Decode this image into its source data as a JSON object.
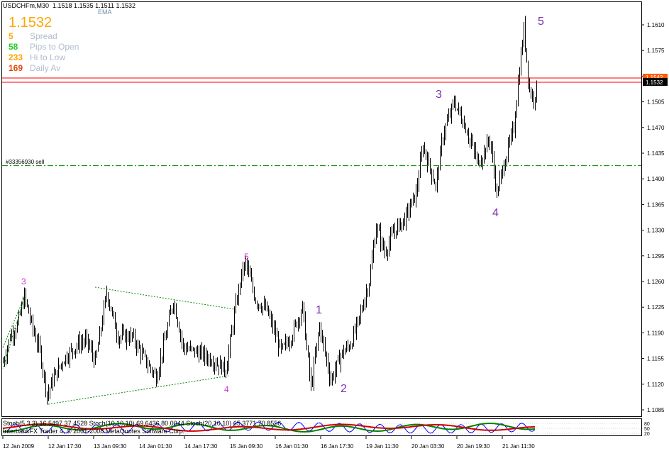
{
  "header": {
    "title": "USDCHFm,M30",
    "ohlc": "1.1518 1.1535 1.1511 1.1532",
    "ema_label": "EMA"
  },
  "info_panel": {
    "price": "1.1532",
    "rows": [
      {
        "value": "5",
        "label": "Spread",
        "color": "#ffa500"
      },
      {
        "value": "58",
        "label": "Pips to Open",
        "color": "#22cc22"
      },
      {
        "value": "233",
        "label": "Hi to Low",
        "color": "#ffa500"
      },
      {
        "value": "169",
        "label": "Daily Av",
        "color": "#e0480a"
      }
    ]
  },
  "order_line": {
    "label": "#33356930 sell",
    "price": 1.1418,
    "color": "#008000"
  },
  "price_axis": {
    "ticks": [
      "1.1610",
      "1.1575",
      "1.1540",
      "1.1505",
      "1.1470",
      "1.1435",
      "1.1400",
      "1.1365",
      "1.1330",
      "1.1295",
      "1.1260",
      "1.1225",
      "1.1190",
      "1.1155",
      "1.1120",
      "1.1085"
    ],
    "current_price_label": "1.1532",
    "resistance_label": "1.1542"
  },
  "time_axis": [
    "12 Jan 2009",
    "12 Jan 17:30",
    "13 Jan 09:30",
    "14 Jan 01:30",
    "14 Jan 17:30",
    "15 Jan 09:30",
    "16 Jan 01:30",
    "16 Jan 17:30",
    "19 Jan 11:30",
    "20 Jan 03:30",
    "20 Jan 19:30",
    "21 Jan 11:30"
  ],
  "wave_labels": [
    {
      "text": "3",
      "color": "#cc33cc",
      "big": false
    },
    {
      "text": "4",
      "color": "#cc33cc",
      "big": false
    },
    {
      "text": "5",
      "color": "#cc33cc",
      "big": false
    },
    {
      "text": "1",
      "color": "#7a30b0",
      "big": true
    },
    {
      "text": "2",
      "color": "#7a30b0",
      "big": true
    },
    {
      "text": "3",
      "color": "#7a30b0",
      "big": true
    },
    {
      "text": "4",
      "color": "#7a30b0",
      "big": true
    },
    {
      "text": "5",
      "color": "#7a30b0",
      "big": true
    }
  ],
  "indicator": {
    "line1": "Stoch(5,3,3) 16.5497 37.4528 Stoch(10,10,10) 69.6436 80.0044  Stoch(20,10,10) 65.3771 70.8556",
    "line2": "InterbankFX Trader 4, © 2001-2008 MetaQuotes Software Corp.",
    "scale": [
      "80",
      "50",
      "20"
    ],
    "colors": [
      "#0000ff",
      "#008000",
      "#cc0000"
    ]
  },
  "colors": {
    "bars": "#000000",
    "horizontal_line": "#ff0000",
    "triangle": "#008000",
    "background": "#ffffff"
  }
}
